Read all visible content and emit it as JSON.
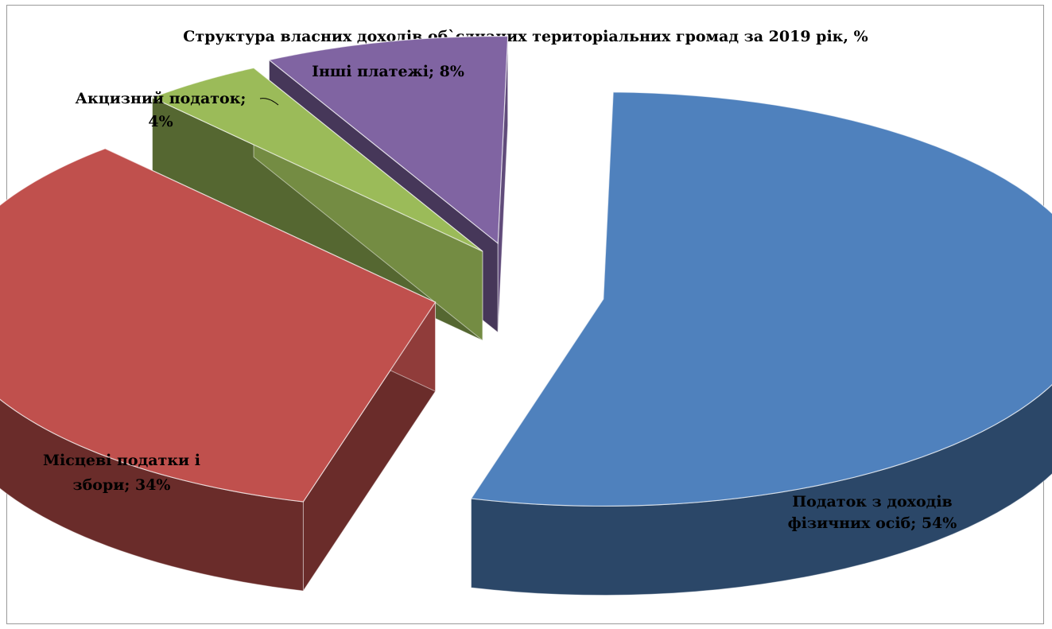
{
  "chart_data": {
    "type": "pie",
    "title": "Структура власних доходів об`єднаних територіальних громад за 2019 рік, %",
    "style": "3d-exploded",
    "legend": "none",
    "slices": [
      {
        "name": "Податок з доходів фізичних осіб",
        "value": 54,
        "color": "#4f81bd",
        "label_lines": [
          "Податок з доходів",
          "фізичних осіб; 54%"
        ]
      },
      {
        "name": "Місцеві податки і збори",
        "value": 34,
        "color": "#c0504d",
        "label_lines": [
          "Місцеві податки і",
          "збори; 34%"
        ]
      },
      {
        "name": "Акцизний податок",
        "value": 4,
        "color": "#9bbb59",
        "label_lines": [
          "Акцизний податок;",
          "4%"
        ]
      },
      {
        "name": "Інші платежі",
        "value": 8,
        "color": "#8064a2",
        "label_lines": [
          "Інші платежі; 8%"
        ]
      }
    ]
  }
}
